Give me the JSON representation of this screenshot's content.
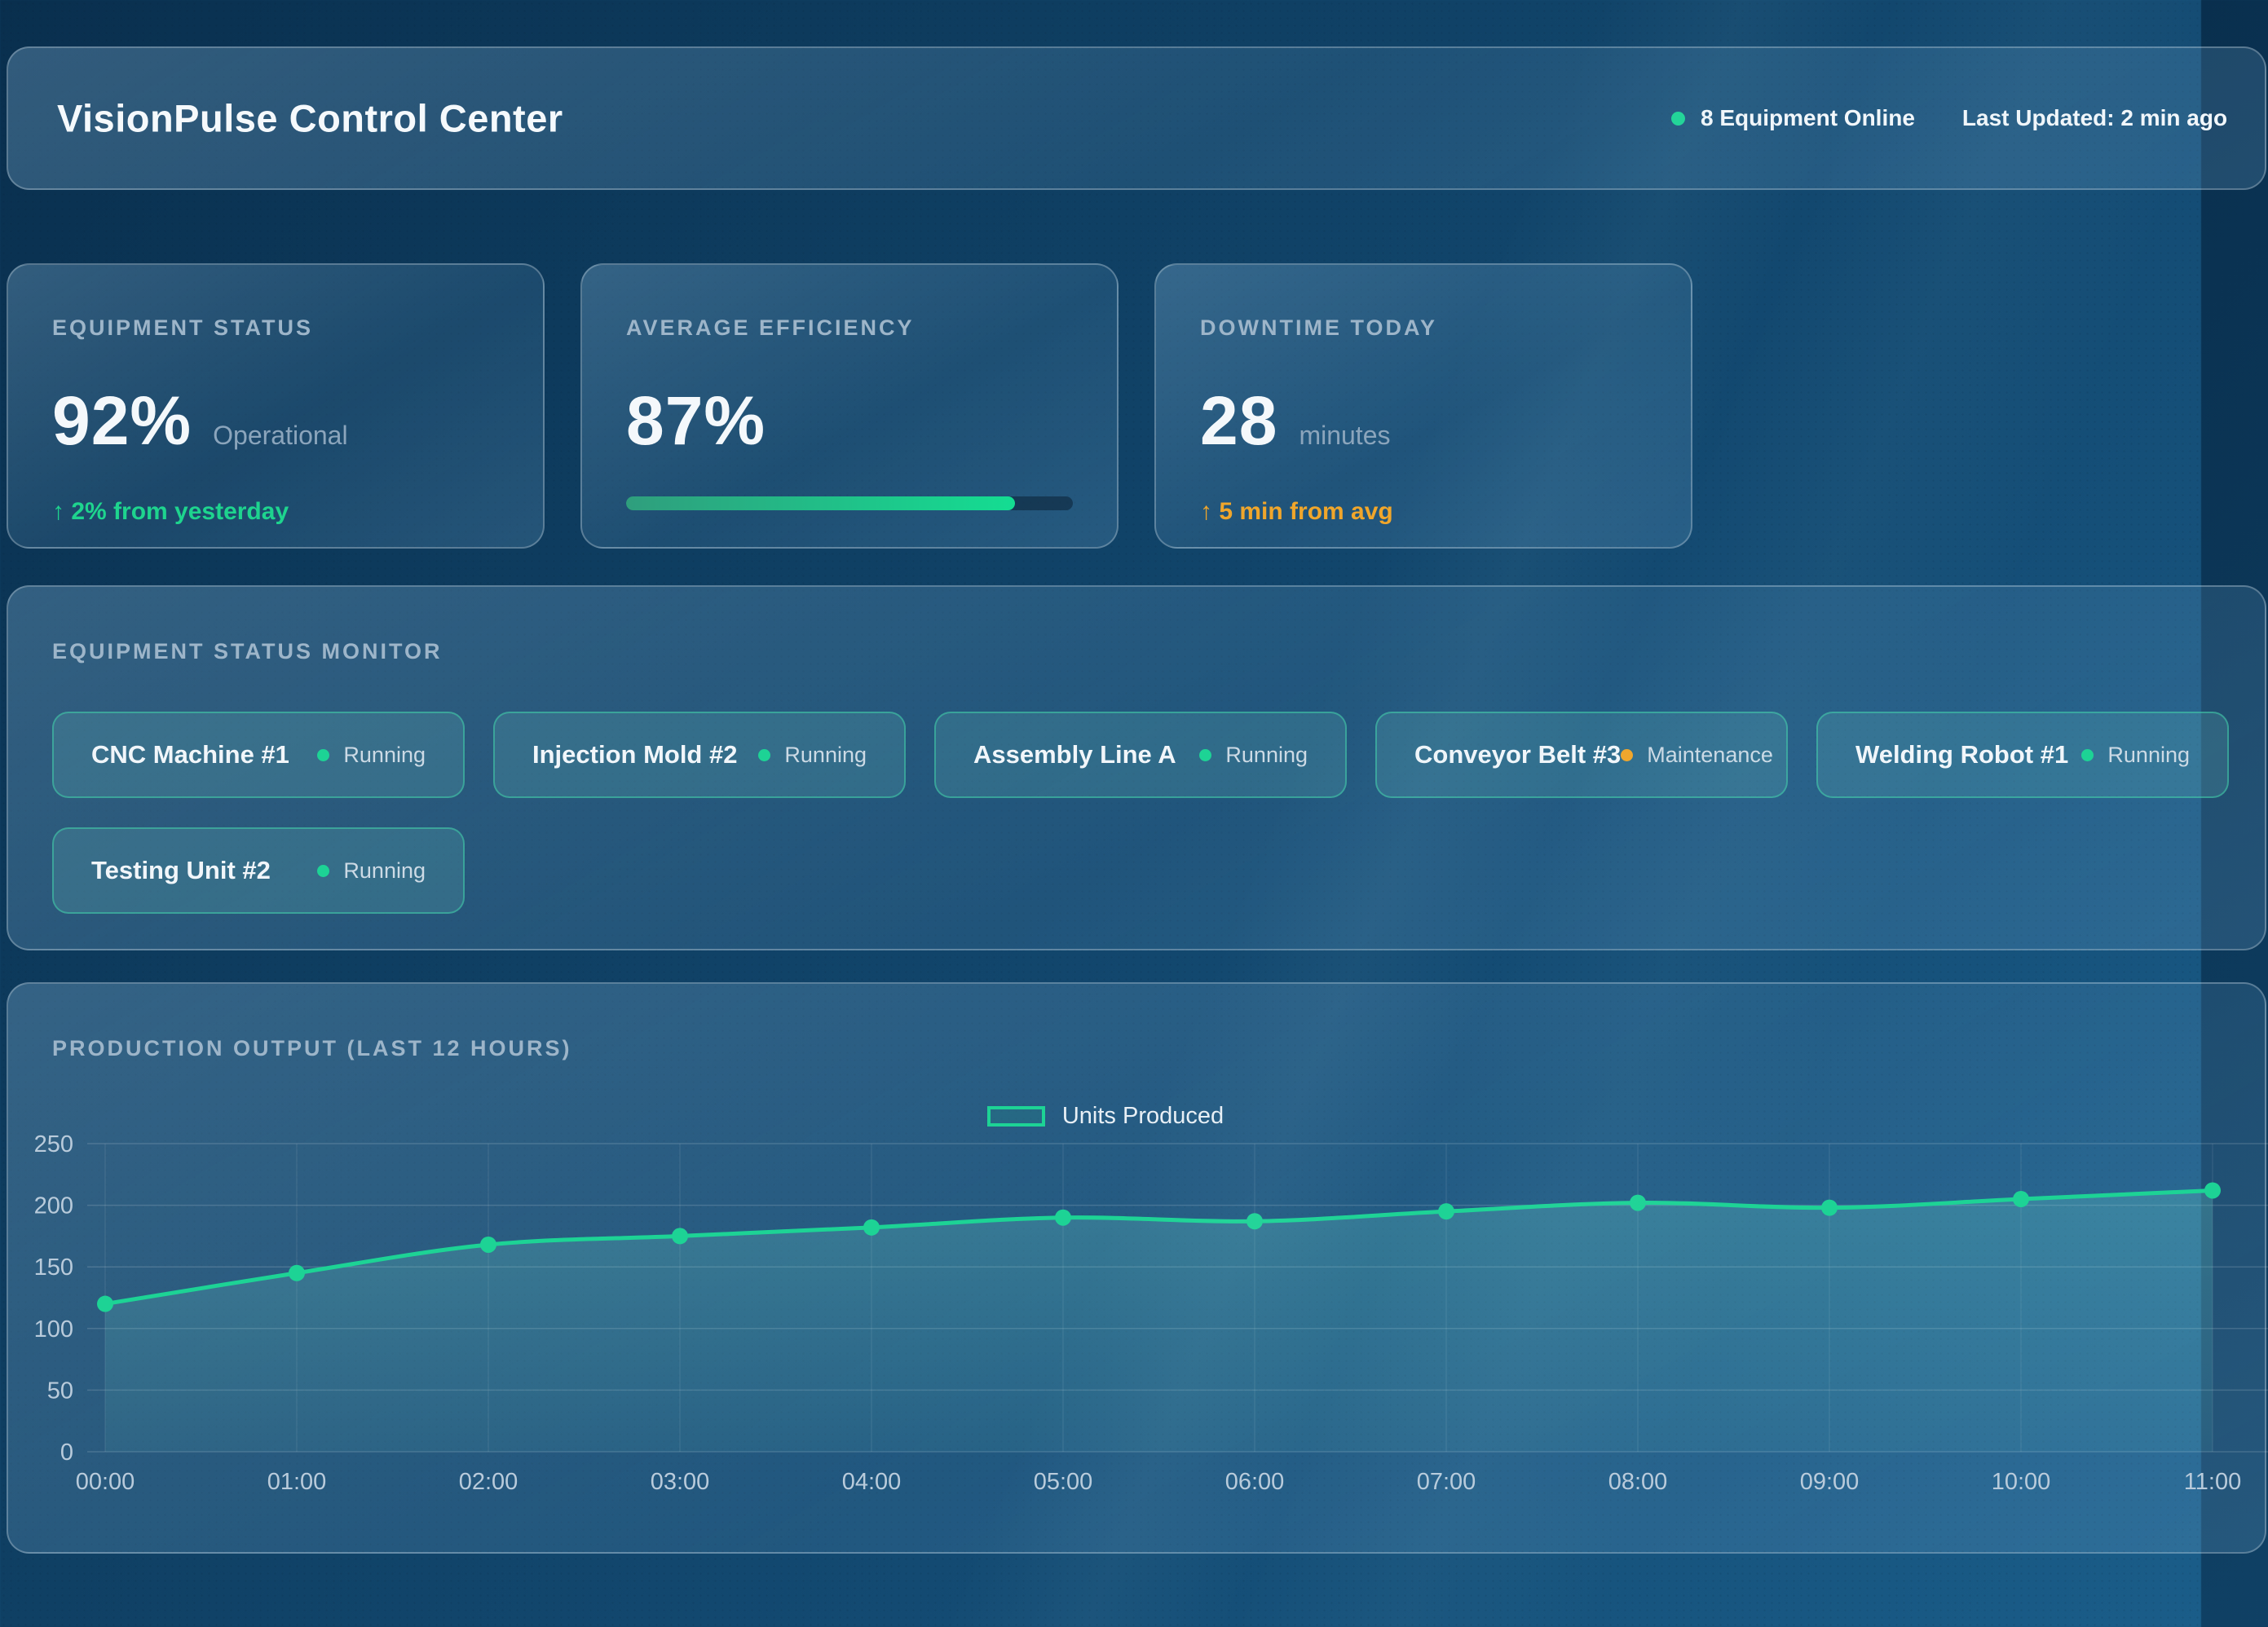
{
  "header": {
    "title": "VisionPulse Control Center",
    "equipment_online": "8 Equipment Online",
    "last_updated": "Last Updated: 2 min ago"
  },
  "colors": {
    "accent": "#1dd395",
    "positive": "#1ed48e",
    "warning": "#f0a62b",
    "tick": "#b9cbdb",
    "grid_horizontal": "rgba(255,255,255,0.15)",
    "grid_vertical": "rgba(255,255,255,0.08)",
    "area_top": "rgba(110,215,205,0.26)",
    "area_bottom": "rgba(110,215,205,0.08)",
    "progress_from": "#2f9e7d",
    "progress_to": "#14dd92"
  },
  "stat_cards": [
    {
      "label": "EQUIPMENT STATUS",
      "value": "92%",
      "unit": "Operational",
      "delta": "↑ 2% from yesterday",
      "delta_color": "positive"
    },
    {
      "label": "AVERAGE EFFICIENCY",
      "value": "87%",
      "progress_percent": 87
    },
    {
      "label": "DOWNTIME TODAY",
      "value": "28",
      "unit": "minutes",
      "delta": "↑ 5 min from avg",
      "delta_color": "warning"
    }
  ],
  "monitor": {
    "title": "EQUIPMENT STATUS MONITOR",
    "machines": [
      {
        "name": "CNC Machine #1",
        "status": "Running",
        "dot_color": "accent"
      },
      {
        "name": "Injection Mold #2",
        "status": "Running",
        "dot_color": "accent"
      },
      {
        "name": "Assembly Line A",
        "status": "Running",
        "dot_color": "accent"
      },
      {
        "name": "Conveyor Belt #3",
        "status": "Maintenance",
        "dot_color": "warning"
      },
      {
        "name": "Welding Robot #1",
        "status": "Running",
        "dot_color": "accent"
      },
      {
        "name": "Testing Unit #2",
        "status": "Running",
        "dot_color": "accent"
      }
    ]
  },
  "chart_data": {
    "type": "line",
    "title": "PRODUCTION OUTPUT (LAST 12 HOURS)",
    "legend_entries": [
      "Units Produced"
    ],
    "legend_position": "top-center",
    "grid": true,
    "x": [
      "00:00",
      "01:00",
      "02:00",
      "03:00",
      "04:00",
      "05:00",
      "06:00",
      "07:00",
      "08:00",
      "09:00",
      "10:00",
      "11:00"
    ],
    "series": [
      {
        "name": "Units Produced",
        "values": [
          120,
          145,
          168,
          175,
          182,
          190,
          187,
          195,
          202,
          198,
          205,
          212
        ]
      }
    ],
    "xlabel": "",
    "ylabel": "",
    "ylim": [
      0,
      250
    ],
    "yticks": [
      0,
      50,
      100,
      150,
      200,
      250
    ]
  }
}
